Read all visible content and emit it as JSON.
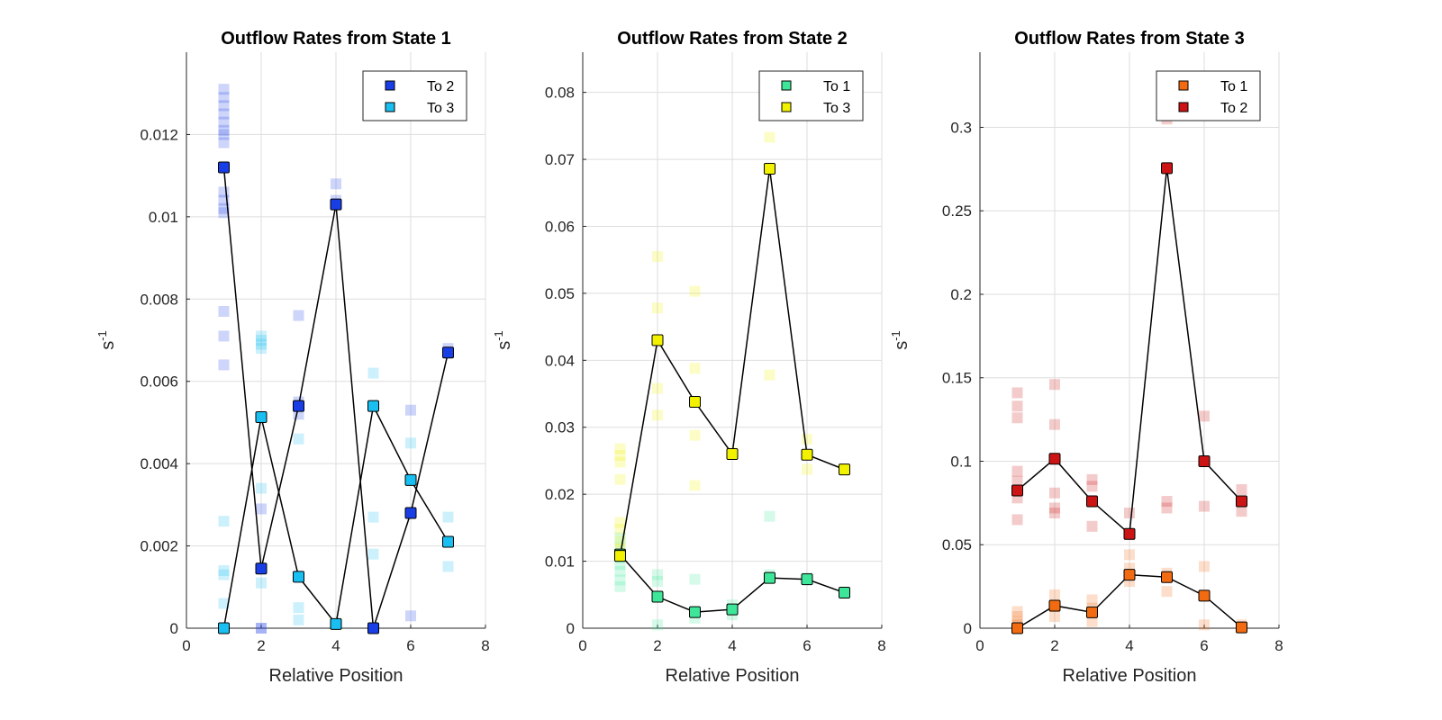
{
  "chart_data": [
    {
      "type": "scatter",
      "title": "Outflow Rates from State 1",
      "xlabel": "Relative Position",
      "ylabel": "s",
      "ylabel_superscript": "-1",
      "xlim": [
        0,
        8
      ],
      "ylim": [
        0,
        0.014
      ],
      "xticks": [
        0,
        2,
        4,
        6,
        8
      ],
      "yticks": [
        0,
        0.002,
        0.004,
        0.006,
        0.008,
        0.01,
        0.012
      ],
      "ytick_labels": [
        "0",
        "0.002",
        "0.004",
        "0.006",
        "0.008",
        "0.01",
        "0.012"
      ],
      "grid": true,
      "legend": "top-right",
      "series": [
        {
          "name": "To 2",
          "color": "#1a3ee6",
          "x": [
            1,
            2,
            3,
            4,
            5,
            6,
            7
          ],
          "y": [
            0.0112,
            0.00145,
            0.0054,
            0.0103,
            0.0,
            0.0028,
            0.0067
          ],
          "samples": [
            [
              1,
              0.0131
            ],
            [
              1,
              0.0129
            ],
            [
              1,
              0.0127
            ],
            [
              1,
              0.0125
            ],
            [
              1,
              0.0123
            ],
            [
              1,
              0.0121
            ],
            [
              1,
              0.012
            ],
            [
              1,
              0.0118
            ],
            [
              1,
              0.0106
            ],
            [
              1,
              0.0104
            ],
            [
              1,
              0.0102
            ],
            [
              1,
              0.0101
            ],
            [
              1,
              0.0077
            ],
            [
              1,
              0.0071
            ],
            [
              1,
              0.0064
            ],
            [
              2,
              0.0029
            ],
            [
              2,
              0.0
            ],
            [
              2,
              0.0
            ],
            [
              3,
              0.0076
            ],
            [
              3,
              0.0055
            ],
            [
              3,
              0.0052
            ],
            [
              4,
              0.0108
            ],
            [
              4,
              0.0104
            ],
            [
              4,
              0.0001
            ],
            [
              5,
              0.0
            ],
            [
              6,
              0.0053
            ],
            [
              6,
              0.0003
            ],
            [
              7,
              0.0068
            ]
          ]
        },
        {
          "name": "To 3",
          "color": "#19bff0",
          "x": [
            1,
            2,
            3,
            4,
            5,
            6,
            7
          ],
          "y": [
            0.0,
            0.00513,
            0.00125,
            0.0001,
            0.0054,
            0.0036,
            0.0021
          ],
          "samples": [
            [
              1,
              0.0026
            ],
            [
              1,
              0.0014
            ],
            [
              1,
              0.0013
            ],
            [
              1,
              0.0006
            ],
            [
              2,
              0.0071
            ],
            [
              2,
              0.007
            ],
            [
              2,
              0.0069
            ],
            [
              2,
              0.0068
            ],
            [
              2,
              0.0034
            ],
            [
              2,
              0.0011
            ],
            [
              3,
              0.0046
            ],
            [
              3,
              0.0005
            ],
            [
              3,
              0.0002
            ],
            [
              4,
              0.0001
            ],
            [
              5,
              0.0062
            ],
            [
              5,
              0.0027
            ],
            [
              5,
              0.0018
            ],
            [
              6,
              0.0045
            ],
            [
              7,
              0.0027
            ],
            [
              7,
              0.0015
            ]
          ]
        }
      ]
    },
    {
      "type": "scatter",
      "title": "Outflow Rates from State 2",
      "xlabel": "Relative Position",
      "ylabel": "s",
      "ylabel_superscript": "-1",
      "xlim": [
        0,
        8
      ],
      "ylim": [
        0,
        0.086
      ],
      "xticks": [
        0,
        2,
        4,
        6,
        8
      ],
      "yticks": [
        0,
        0.01,
        0.02,
        0.03,
        0.04,
        0.05,
        0.06,
        0.07,
        0.08
      ],
      "ytick_labels": [
        "0",
        "0.01",
        "0.02",
        "0.03",
        "0.04",
        "0.05",
        "0.06",
        "0.07",
        "0.08"
      ],
      "grid": true,
      "legend": "top-right",
      "series": [
        {
          "name": "To 1",
          "color": "#3ee699",
          "x": [
            1,
            2,
            3,
            4,
            5,
            6,
            7
          ],
          "y": [
            0.011,
            0.0047,
            0.0024,
            0.0028,
            0.0075,
            0.0073,
            0.0053
          ],
          "samples": [
            [
              1,
              0.0135
            ],
            [
              1,
              0.012
            ],
            [
              1,
              0.0105
            ],
            [
              1,
              0.0095
            ],
            [
              1,
              0.0085
            ],
            [
              1,
              0.0072
            ],
            [
              1,
              0.0062
            ],
            [
              2,
              0.008
            ],
            [
              2,
              0.007
            ],
            [
              2,
              0.0005
            ],
            [
              3,
              0.0073
            ],
            [
              3,
              0.0025
            ],
            [
              3,
              0.0015
            ],
            [
              4,
              0.0035
            ],
            [
              4,
              0.002
            ],
            [
              5,
              0.0167
            ],
            [
              5,
              0.008
            ],
            [
              6,
              0.0075
            ],
            [
              7,
              0.0052
            ]
          ]
        },
        {
          "name": "To 3",
          "color": "#f2f200",
          "x": [
            1,
            2,
            3,
            4,
            5,
            6,
            7
          ],
          "y": [
            0.0108,
            0.043,
            0.0338,
            0.026,
            0.0686,
            0.0259,
            0.0237
          ],
          "samples": [
            [
              1,
              0.0268
            ],
            [
              1,
              0.0258
            ],
            [
              1,
              0.0248
            ],
            [
              1,
              0.0222
            ],
            [
              1,
              0.0158
            ],
            [
              1,
              0.0148
            ],
            [
              1,
              0.013
            ],
            [
              1,
              0.0118
            ],
            [
              2,
              0.0555
            ],
            [
              2,
              0.0478
            ],
            [
              2,
              0.0358
            ],
            [
              2,
              0.0318
            ],
            [
              3,
              0.0503
            ],
            [
              3,
              0.0388
            ],
            [
              3,
              0.0288
            ],
            [
              3,
              0.0213
            ],
            [
              4,
              0.0262
            ],
            [
              5,
              0.0733
            ],
            [
              5,
              0.0378
            ],
            [
              6,
              0.0282
            ],
            [
              6,
              0.0237
            ],
            [
              7,
              0.0237
            ]
          ]
        }
      ]
    },
    {
      "type": "scatter",
      "title": "Outflow Rates from State 3",
      "xlabel": "Relative Position",
      "ylabel": "s",
      "ylabel_superscript": "-1",
      "xlim": [
        0,
        8
      ],
      "ylim": [
        0,
        0.345
      ],
      "xticks": [
        0,
        2,
        4,
        6,
        8
      ],
      "yticks": [
        0,
        0.05,
        0.1,
        0.15,
        0.2,
        0.25,
        0.3
      ],
      "ytick_labels": [
        "0",
        "0.05",
        "0.1",
        "0.15",
        "0.2",
        "0.25",
        "0.3"
      ],
      "grid": true,
      "legend": "top-right",
      "series": [
        {
          "name": "To 1",
          "color": "#f26b11",
          "x": [
            1,
            2,
            3,
            4,
            5,
            6,
            7
          ],
          "y": [
            0.0,
            0.0135,
            0.0095,
            0.032,
            0.0306,
            0.0195,
            0.0005
          ],
          "samples": [
            [
              1,
              0.01
            ],
            [
              1,
              0.007
            ],
            [
              1,
              0.004
            ],
            [
              1,
              0.002
            ],
            [
              2,
              0.02
            ],
            [
              2,
              0.013
            ],
            [
              2,
              0.007
            ],
            [
              3,
              0.017
            ],
            [
              3,
              0.012
            ],
            [
              3,
              0.004
            ],
            [
              4,
              0.044
            ],
            [
              4,
              0.036
            ],
            [
              4,
              0.028
            ],
            [
              5,
              0.033
            ],
            [
              5,
              0.022
            ],
            [
              6,
              0.037
            ],
            [
              6,
              0.002
            ],
            [
              7,
              0.002
            ]
          ]
        },
        {
          "name": "To 2",
          "color": "#cc1414",
          "x": [
            1,
            2,
            3,
            4,
            5,
            6,
            7
          ],
          "y": [
            0.0825,
            0.1015,
            0.076,
            0.0565,
            0.2755,
            0.1,
            0.076
          ],
          "samples": [
            [
              1,
              0.141
            ],
            [
              1,
              0.133
            ],
            [
              1,
              0.126
            ],
            [
              1,
              0.094
            ],
            [
              1,
              0.088
            ],
            [
              1,
              0.078
            ],
            [
              1,
              0.065
            ],
            [
              2,
              0.146
            ],
            [
              2,
              0.122
            ],
            [
              2,
              0.081
            ],
            [
              2,
              0.072
            ],
            [
              2,
              0.069
            ],
            [
              3,
              0.089
            ],
            [
              3,
              0.085
            ],
            [
              3,
              0.061
            ],
            [
              4,
              0.069
            ],
            [
              4,
              0.056
            ],
            [
              5,
              0.305
            ],
            [
              5,
              0.076
            ],
            [
              5,
              0.072
            ],
            [
              6,
              0.127
            ],
            [
              6,
              0.073
            ],
            [
              7,
              0.083
            ],
            [
              7,
              0.07
            ]
          ]
        }
      ]
    }
  ]
}
